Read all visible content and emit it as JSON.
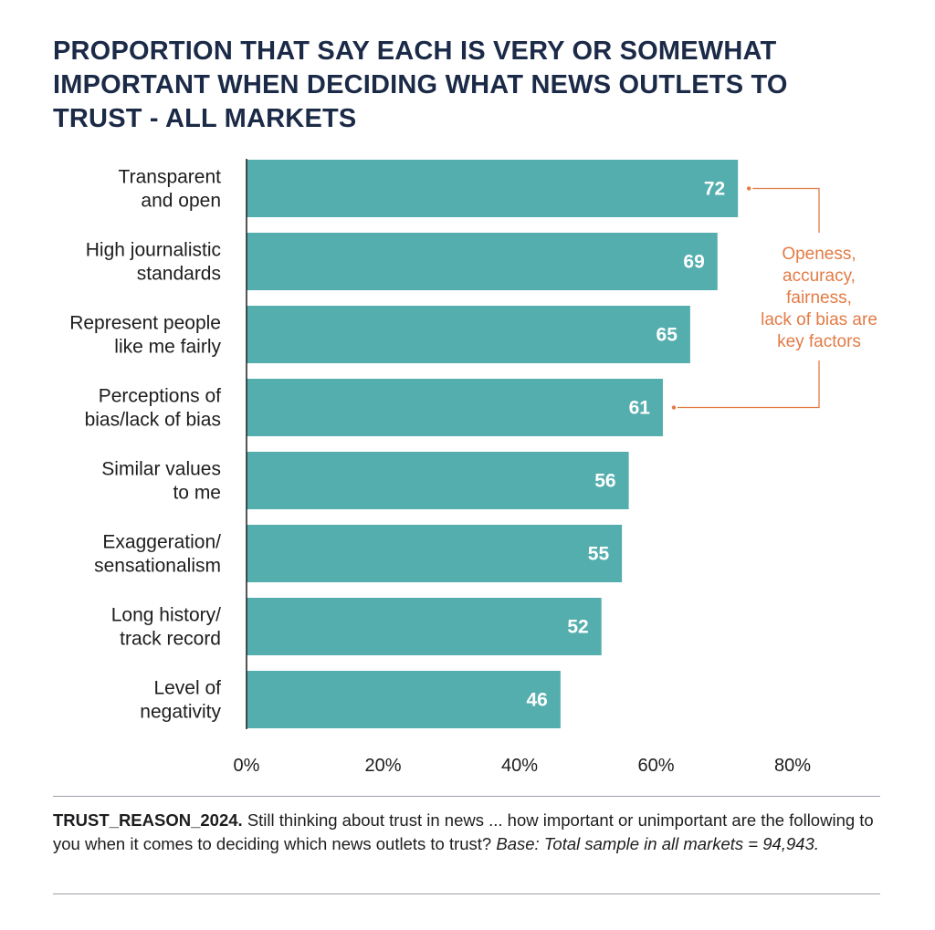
{
  "chart_data": {
    "type": "bar",
    "orientation": "horizontal",
    "title": "PROPORTION THAT SAY EACH IS VERY OR SOMEWHAT IMPORTANT WHEN DECIDING WHAT NEWS OUTLETS TO TRUST - ALL MARKETS",
    "categories": [
      [
        "Transparent",
        "and open"
      ],
      [
        "High journalistic",
        "standards"
      ],
      [
        "Represent people",
        "like me fairly"
      ],
      [
        "Perceptions of",
        "bias/lack of bias"
      ],
      [
        "Similar values",
        "to me"
      ],
      [
        "Exaggeration/",
        "sensationalism"
      ],
      [
        "Long history/",
        "track record"
      ],
      [
        "Level of",
        "negativity"
      ]
    ],
    "values": [
      72,
      69,
      65,
      61,
      56,
      55,
      52,
      46
    ],
    "value_labels": [
      "72",
      "69",
      "65",
      "61",
      "56",
      "55",
      "52",
      "46"
    ],
    "xlim": [
      0,
      80
    ],
    "ticks": [
      0,
      20,
      40,
      60,
      80
    ],
    "tick_labels": [
      "0%",
      "20%",
      "40%",
      "60%",
      "80%"
    ],
    "xlabel": "",
    "ylabel": "",
    "grid": false,
    "bar_color": "#54aeae",
    "annotation": {
      "lines": [
        "Openess,",
        "accuracy,",
        "fairness,",
        "lack of bias are",
        "key factors"
      ],
      "color": "#e37b45",
      "bracket_from_index": 0,
      "bracket_to_index": 3
    }
  },
  "footnote": {
    "code": "TRUST_REASON_2024.",
    "question": " Still thinking about trust in news ... how important or unimportant are the following to you when it comes to deciding which news outlets to trust? ",
    "base": "Base: Total sample in all markets = 94,943."
  },
  "colors": {
    "title": "#1b2a47",
    "text": "#1d1d1f",
    "bar": "#54aeae",
    "annotation": "#e37b45",
    "rule": "#9aa0a6"
  }
}
